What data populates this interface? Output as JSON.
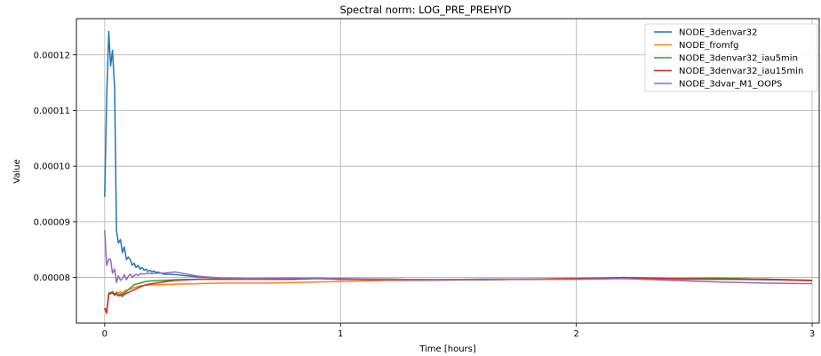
{
  "chart_data": {
    "type": "line",
    "title": "Spectral norm: LOG_PRE_PREHYD",
    "xlabel": "Time [hours]",
    "ylabel": "Value",
    "xlim": [
      -0.12,
      3.03
    ],
    "ylim": [
      7.18e-05,
      0.0001265
    ],
    "xticks": [
      0,
      1,
      2,
      3
    ],
    "xtick_labels": [
      "0",
      "1",
      "2",
      "3"
    ],
    "yticks": [
      8e-05,
      9e-05,
      0.0001,
      0.00011,
      0.00012
    ],
    "ytick_labels": [
      "0.00008",
      "0.00009",
      "0.00010",
      "0.00011",
      "0.00012"
    ],
    "grid": true,
    "legend_position": "top-right",
    "series": [
      {
        "name": "NODE_3denvar32",
        "color": "#1f77b4",
        "x": [
          0,
          0.008,
          0.017,
          0.025,
          0.033,
          0.042,
          0.05,
          0.058,
          0.067,
          0.075,
          0.083,
          0.092,
          0.1,
          0.108,
          0.117,
          0.125,
          0.133,
          0.142,
          0.15,
          0.158,
          0.167,
          0.175,
          0.183,
          0.192,
          0.2,
          0.208,
          0.217,
          0.225,
          0.25,
          0.3,
          0.35,
          0.4,
          0.5,
          0.6,
          0.7,
          0.8,
          0.9,
          1.0,
          1.2,
          1.4,
          1.6,
          1.8,
          2.0,
          2.2,
          2.4,
          2.6,
          2.8,
          3.0
        ],
        "y": [
          9.45e-05,
          0.000112,
          0.0001242,
          0.000118,
          0.0001208,
          0.000114,
          8.85e-05,
          8.62e-05,
          8.68e-05,
          8.45e-05,
          8.55e-05,
          8.32e-05,
          8.37e-05,
          8.32e-05,
          8.22e-05,
          8.26e-05,
          8.18e-05,
          8.22e-05,
          8.15e-05,
          8.18e-05,
          8.13e-05,
          8.15e-05,
          8.11e-05,
          8.13e-05,
          8.1e-05,
          8.12e-05,
          8.09e-05,
          8.1e-05,
          8.06e-05,
          8.05e-05,
          8.03e-05,
          8.01e-05,
          7.99e-05,
          7.98e-05,
          7.97e-05,
          7.97e-05,
          7.98e-05,
          7.97e-05,
          7.97e-05,
          7.96e-05,
          7.96e-05,
          7.97e-05,
          7.97e-05,
          7.98e-05,
          7.97e-05,
          7.97e-05,
          7.96e-05,
          7.95e-05
        ]
      },
      {
        "name": "NODE_fromfg",
        "color": "#ff7f0e",
        "x": [
          0,
          0.008,
          0.017,
          0.025,
          0.033,
          0.042,
          0.05,
          0.058,
          0.067,
          0.075,
          0.083,
          0.1,
          0.125,
          0.15,
          0.175,
          0.2,
          0.25,
          0.3,
          0.4,
          0.5,
          0.6,
          0.7,
          0.8,
          0.9,
          1.0,
          1.2,
          1.4,
          1.6,
          1.8,
          2.0,
          2.2,
          2.4,
          2.6,
          2.8,
          3.0
        ],
        "y": [
          7.45e-05,
          7.38e-05,
          7.72e-05,
          7.72e-05,
          7.75e-05,
          7.7e-05,
          7.74e-05,
          7.72e-05,
          7.75e-05,
          7.72e-05,
          7.76e-05,
          7.78e-05,
          7.82e-05,
          7.85e-05,
          7.86e-05,
          7.87e-05,
          7.87e-05,
          7.88e-05,
          7.89e-05,
          7.9e-05,
          7.9e-05,
          7.9e-05,
          7.91e-05,
          7.92e-05,
          7.93e-05,
          7.95e-05,
          7.95e-05,
          7.96e-05,
          7.97e-05,
          7.99e-05,
          7.99e-05,
          7.97e-05,
          7.97e-05,
          7.97e-05,
          7.95e-05
        ]
      },
      {
        "name": "NODE_3denvar32_iau5min",
        "color": "#2ca02c",
        "x": [
          0,
          0.008,
          0.017,
          0.025,
          0.033,
          0.042,
          0.05,
          0.058,
          0.067,
          0.075,
          0.083,
          0.1,
          0.125,
          0.15,
          0.175,
          0.2,
          0.25,
          0.3,
          0.4,
          0.5,
          0.6,
          0.7,
          0.8,
          0.9,
          1.0,
          1.2,
          1.4,
          1.6,
          1.8,
          2.0,
          2.2,
          2.4,
          2.6,
          2.8,
          3.0
        ],
        "y": [
          7.45e-05,
          7.38e-05,
          7.72e-05,
          7.73e-05,
          7.74e-05,
          7.69e-05,
          7.72e-05,
          7.68e-05,
          7.71e-05,
          7.69e-05,
          7.72e-05,
          7.78e-05,
          7.87e-05,
          7.9e-05,
          7.93e-05,
          7.94e-05,
          7.95e-05,
          7.96e-05,
          7.97e-05,
          7.97e-05,
          7.97e-05,
          7.97e-05,
          7.97e-05,
          7.98e-05,
          7.97e-05,
          7.97e-05,
          7.96e-05,
          7.96e-05,
          7.97e-05,
          7.97e-05,
          8e-05,
          7.98e-05,
          7.99e-05,
          7.97e-05,
          7.95e-05
        ]
      },
      {
        "name": "NODE_3denvar32_iau15min",
        "color": "#d62728",
        "x": [
          0,
          0.008,
          0.017,
          0.025,
          0.033,
          0.042,
          0.05,
          0.058,
          0.067,
          0.075,
          0.083,
          0.1,
          0.125,
          0.15,
          0.175,
          0.2,
          0.25,
          0.3,
          0.4,
          0.5,
          0.6,
          0.7,
          0.8,
          0.9,
          1.0,
          1.2,
          1.4,
          1.6,
          1.8,
          2.0,
          2.2,
          2.4,
          2.6,
          2.8,
          3.0
        ],
        "y": [
          7.45e-05,
          7.36e-05,
          7.7e-05,
          7.71e-05,
          7.72e-05,
          7.68e-05,
          7.71e-05,
          7.67e-05,
          7.68e-05,
          7.66e-05,
          7.7e-05,
          7.73e-05,
          7.78e-05,
          7.83e-05,
          7.87e-05,
          7.89e-05,
          7.92e-05,
          7.95e-05,
          7.97e-05,
          7.97e-05,
          7.97e-05,
          7.97e-05,
          7.97e-05,
          7.99e-05,
          7.97e-05,
          7.96e-05,
          7.96e-05,
          7.97e-05,
          7.97e-05,
          7.98e-05,
          8e-05,
          7.98e-05,
          7.97e-05,
          7.97e-05,
          7.94e-05
        ]
      },
      {
        "name": "NODE_3dvar_M1_OOPS",
        "color": "#9467bd",
        "x": [
          0,
          0.008,
          0.017,
          0.025,
          0.033,
          0.042,
          0.05,
          0.058,
          0.067,
          0.075,
          0.083,
          0.092,
          0.1,
          0.108,
          0.117,
          0.125,
          0.133,
          0.142,
          0.15,
          0.167,
          0.183,
          0.2,
          0.225,
          0.25,
          0.3,
          0.35,
          0.4,
          0.5,
          0.6,
          0.8,
          1.0,
          1.2,
          1.4,
          1.6,
          1.8,
          2.0,
          2.2,
          2.4,
          2.6,
          2.8,
          3.0
        ],
        "y": [
          8.85e-05,
          8.22e-05,
          8.33e-05,
          8.32e-05,
          8.08e-05,
          8.15e-05,
          7.91e-05,
          8.03e-05,
          7.95e-05,
          7.98e-05,
          8.05e-05,
          7.96e-05,
          8.02e-05,
          8.06e-05,
          8.01e-05,
          8.03e-05,
          8.06e-05,
          8.03e-05,
          8.07e-05,
          8.06e-05,
          8.08e-05,
          8.07e-05,
          8.08e-05,
          8.08e-05,
          8.1e-05,
          8.06e-05,
          8.02e-05,
          7.99e-05,
          7.98e-05,
          7.99e-05,
          7.98e-05,
          7.97e-05,
          7.96e-05,
          7.97e-05,
          7.97e-05,
          7.97e-05,
          7.98e-05,
          7.95e-05,
          7.92e-05,
          7.9e-05,
          7.89e-05
        ]
      }
    ]
  }
}
